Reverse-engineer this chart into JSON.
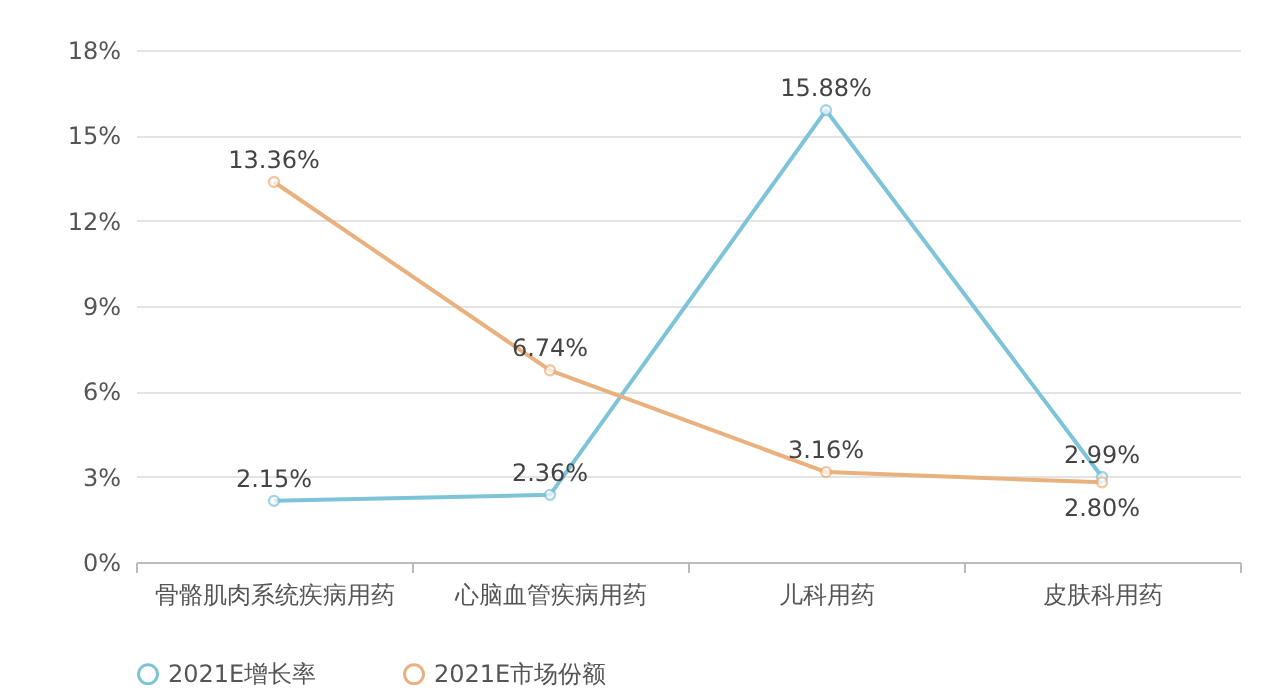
{
  "chart_data": {
    "type": "line",
    "categories": [
      "骨骼肌肉系统疾病用药",
      "心脑血管疾病用药",
      "儿科用药",
      "皮肤科用药"
    ],
    "series": [
      {
        "name": "2021E增长率",
        "color": "#7ec4d9",
        "values": [
          2.15,
          2.36,
          15.88,
          2.99
        ],
        "value_labels": [
          "2.15%",
          "2.36%",
          "15.88%",
          "2.99%"
        ]
      },
      {
        "name": "2021E市场份额",
        "color": "#e9b17e",
        "values": [
          13.36,
          6.74,
          3.16,
          2.8
        ],
        "value_labels": [
          "13.36%",
          "6.74%",
          "3.16%",
          "2.80%"
        ]
      }
    ],
    "ylim": [
      0,
      18
    ],
    "yticks": [
      {
        "value": 0,
        "label": "0%"
      },
      {
        "value": 3,
        "label": "3%"
      },
      {
        "value": 6,
        "label": "6%"
      },
      {
        "value": 9,
        "label": "9%"
      },
      {
        "value": 12,
        "label": "12%"
      },
      {
        "value": 15,
        "label": "15%"
      },
      {
        "value": 18,
        "label": "18%"
      }
    ],
    "grid": "y",
    "legend": "bottom",
    "marker": "circle",
    "line_style": "solid"
  }
}
